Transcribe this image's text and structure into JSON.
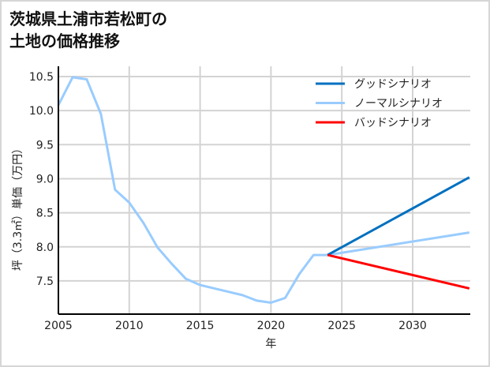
{
  "title_line1": "茨城県土浦市若松町の",
  "title_line2": "土地の価格推移",
  "chart_data": {
    "type": "line",
    "title": "茨城県土浦市若松町の土地の価格推移",
    "xlabel": "年",
    "ylabel": "坪（3.3㎡）単価（万円）",
    "xlim": [
      2005,
      2034
    ],
    "ylim": [
      7.0,
      10.6
    ],
    "xticks": [
      2005,
      2010,
      2015,
      2020,
      2025,
      2030
    ],
    "yticks": [
      7.5,
      8.0,
      8.5,
      9.0,
      9.5,
      10.0,
      10.5
    ],
    "grid": true,
    "legend_position": "upper right",
    "series": [
      {
        "name": "グッドシナリオ",
        "color": "#0070c0",
        "x": [
          2024,
          2034
        ],
        "values": [
          7.88,
          9.02
        ]
      },
      {
        "name": "ノーマルシナリオ",
        "color": "#99ccff",
        "x": [
          2005,
          2006,
          2007,
          2008,
          2009,
          2010,
          2011,
          2012,
          2013,
          2014,
          2015,
          2016,
          2017,
          2018,
          2019,
          2020,
          2021,
          2022,
          2023,
          2024,
          2034
        ],
        "values": [
          10.08,
          10.49,
          10.46,
          9.95,
          8.84,
          8.65,
          8.35,
          7.99,
          7.75,
          7.53,
          7.44,
          7.39,
          7.34,
          7.29,
          7.21,
          7.18,
          7.25,
          7.6,
          7.88,
          7.88,
          8.21
        ]
      },
      {
        "name": "バッドシナリオ",
        "color": "#ff0000",
        "x": [
          2024,
          2034
        ],
        "values": [
          7.88,
          7.39
        ]
      }
    ]
  }
}
